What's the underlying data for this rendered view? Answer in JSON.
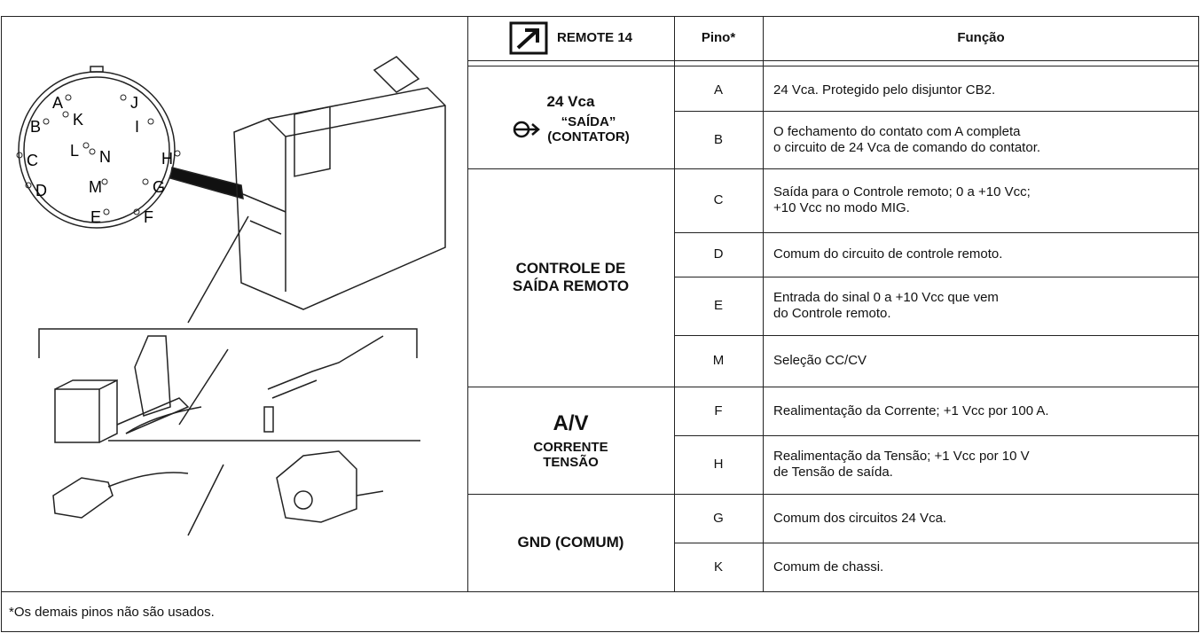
{
  "header": {
    "remote": "REMOTE 14",
    "pin": "Pino*",
    "function": "Função"
  },
  "connector_letters": [
    "A",
    "J",
    "B",
    "K",
    "I",
    "C",
    "L",
    "N",
    "H",
    "D",
    "M",
    "G",
    "E",
    "F"
  ],
  "groups": [
    {
      "title": [
        "24 Vca"
      ],
      "subtitle": [
        "“SAÍDA”",
        "(CONTATOR)"
      ],
      "rows": [
        {
          "pin": "A",
          "function": [
            "24 Vca. Protegido pelo disjuntor CB2."
          ]
        },
        {
          "pin": "B",
          "function": [
            "O fechamento do contato com A completa",
            "o circuito de 24 Vca de comando do contator."
          ]
        }
      ]
    },
    {
      "title": [
        "CONTROLE DE",
        "SAÍDA REMOTO"
      ],
      "rows": [
        {
          "pin": "C",
          "function": [
            "Saída para o Controle remoto; 0 a +10 Vcc;",
            "+10 Vcc no modo MIG."
          ]
        },
        {
          "pin": "D",
          "function": [
            "Comum do circuito de controle remoto."
          ]
        },
        {
          "pin": "E",
          "function": [
            "Entrada do sinal 0 a +10 Vcc que vem",
            "do Controle remoto."
          ]
        },
        {
          "pin": "M",
          "function": [
            "Seleção CC/CV"
          ]
        }
      ]
    },
    {
      "title": [
        "A/V"
      ],
      "subtitle": [
        "CORRENTE",
        "TENSÃO"
      ],
      "rows": [
        {
          "pin": "F",
          "function": [
            "Realimentação da Corrente; +1 Vcc por 100 A."
          ]
        },
        {
          "pin": "H",
          "function": [
            "Realimentação da Tensão; +1 Vcc por 10 V",
            "de Tensão de saída."
          ]
        }
      ]
    },
    {
      "title": [
        "GND (COMUM)"
      ],
      "rows": [
        {
          "pin": "G",
          "function": [
            "Comum dos circuitos 24 Vca."
          ]
        },
        {
          "pin": "K",
          "function": [
            "Comum de chassi."
          ]
        }
      ]
    }
  ],
  "footnote": "*Os demais pinos não são usados."
}
